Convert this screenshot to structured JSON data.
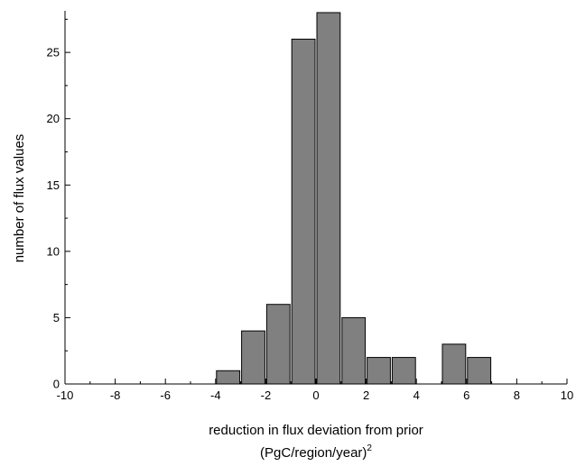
{
  "chart_data": {
    "type": "bar",
    "title": "",
    "xlabel": "reduction in flux deviation from prior",
    "xlabel_line2": "(PgC/region/year)",
    "xlabel_line2_superscript": "2",
    "ylabel": "number of flux values",
    "xlim": [
      -10,
      10
    ],
    "ylim": [
      0,
      28
    ],
    "bin_width": 1,
    "x_ticks": [
      -10,
      -8,
      -6,
      -4,
      -2,
      0,
      2,
      4,
      6,
      8,
      10
    ],
    "x_tick_labels": [
      "-10",
      "-8",
      "-6",
      "-4",
      "-2",
      "0",
      "2",
      "4",
      "6",
      "8",
      "10"
    ],
    "y_ticks": [
      0,
      5,
      10,
      15,
      20,
      25
    ],
    "y_tick_labels": [
      "0",
      "5",
      "10",
      "15",
      "20",
      "25"
    ],
    "grid": false,
    "legend": "none",
    "bar_color": "#808080",
    "bins": [
      {
        "x_start": -4,
        "x_end": -3,
        "value": 1
      },
      {
        "x_start": -3,
        "x_end": -2,
        "value": 4
      },
      {
        "x_start": -2,
        "x_end": -1,
        "value": 6
      },
      {
        "x_start": -1,
        "x_end": 0,
        "value": 26
      },
      {
        "x_start": 0,
        "x_end": 1,
        "value": 28
      },
      {
        "x_start": 1,
        "x_end": 2,
        "value": 5
      },
      {
        "x_start": 2,
        "x_end": 3,
        "value": 2
      },
      {
        "x_start": 3,
        "x_end": 4,
        "value": 2
      },
      {
        "x_start": 5,
        "x_end": 6,
        "value": 3
      },
      {
        "x_start": 6,
        "x_end": 7,
        "value": 2
      }
    ]
  }
}
